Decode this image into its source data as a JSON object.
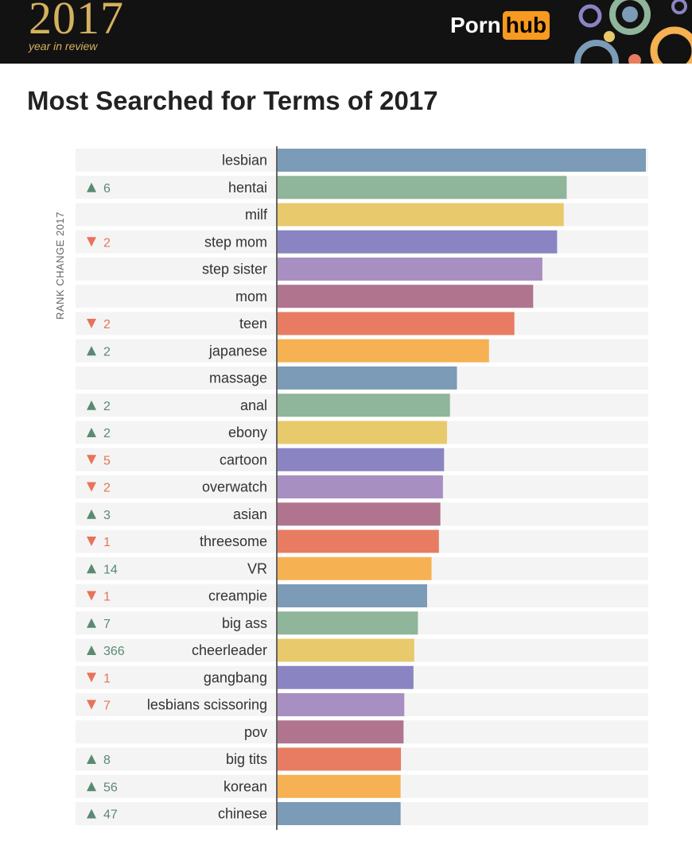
{
  "header": {
    "year": "2017",
    "subtitle": "year in review",
    "logo_text": "Porn",
    "logo_box": "hub",
    "logo_box_color": "#f79a1f"
  },
  "chart_data": {
    "type": "bar",
    "orientation": "horizontal",
    "title": "Most Searched for Terms of 2017",
    "change_axis_label": "RANK CHANGE 2017",
    "categories": [
      "lesbian",
      "hentai",
      "milf",
      "step mom",
      "step sister",
      "mom",
      "teen",
      "japanese",
      "massage",
      "anal",
      "ebony",
      "cartoon",
      "overwatch",
      "asian",
      "threesome",
      "VR",
      "creampie",
      "big ass",
      "cheerleader",
      "gangbang",
      "lesbians scissoring",
      "pov",
      "big tits",
      "korean",
      "chinese"
    ],
    "values": [
      100,
      78.5,
      77.7,
      75.9,
      71.9,
      69.4,
      64.3,
      57.4,
      48.7,
      46.8,
      46.0,
      45.2,
      44.9,
      44.2,
      43.8,
      41.8,
      40.6,
      38.1,
      37.1,
      36.9,
      34.4,
      34.2,
      33.5,
      33.4,
      33.4
    ],
    "xlim": [
      0,
      100
    ],
    "rank_change": [
      null,
      {
        "dir": "up",
        "value": "6"
      },
      null,
      {
        "dir": "down",
        "value": "2"
      },
      null,
      null,
      {
        "dir": "down",
        "value": "2"
      },
      {
        "dir": "up",
        "value": "2"
      },
      null,
      {
        "dir": "up",
        "value": "2"
      },
      {
        "dir": "up",
        "value": "2"
      },
      {
        "dir": "down",
        "value": "5"
      },
      {
        "dir": "down",
        "value": "2"
      },
      {
        "dir": "up",
        "value": "3"
      },
      {
        "dir": "down",
        "value": "1"
      },
      {
        "dir": "up",
        "value": "14"
      },
      {
        "dir": "down",
        "value": "1"
      },
      {
        "dir": "up",
        "value": "7"
      },
      {
        "dir": "up",
        "value": "366"
      },
      {
        "dir": "down",
        "value": "1"
      },
      {
        "dir": "down",
        "value": "7"
      },
      null,
      {
        "dir": "up",
        "value": "8"
      },
      {
        "dir": "up",
        "value": "56"
      },
      {
        "dir": "up",
        "value": "47"
      }
    ],
    "colors": [
      "#7b9bb7",
      "#8fb59a",
      "#e8c96b",
      "#8a85c2",
      "#a88fc2",
      "#b0748f",
      "#e87c62",
      "#f5b152",
      "#7b9bb7",
      "#8fb59a",
      "#e8c96b",
      "#8a85c2",
      "#a88fc2",
      "#b0748f",
      "#e87c62",
      "#f5b152",
      "#7b9bb7",
      "#8fb59a",
      "#e8c96b",
      "#8a85c2",
      "#a88fc2",
      "#b0748f",
      "#e87c62",
      "#f5b152",
      "#7b9bb7"
    ],
    "up_color": "#5a8a72",
    "down_color": "#e8735a",
    "row_band_color": "#f4f4f4",
    "grid": false,
    "legend": "none"
  }
}
